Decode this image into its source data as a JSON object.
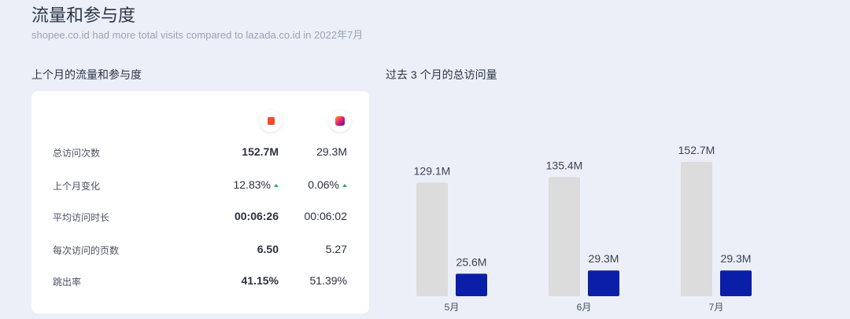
{
  "header": {
    "title": "流量和参与度",
    "subtitle": "shopee.co.id had more total visits compared to lazada.co.id in 2022年7月"
  },
  "left_section": {
    "title": "上个月的流量和参与度",
    "logos": [
      "shopee-logo-icon",
      "lazada-logo-icon"
    ],
    "rows": [
      {
        "label": "总访问次数",
        "shopee": "152.7M",
        "lazada": "29.3M",
        "shopee_bold": true,
        "arrows": false
      },
      {
        "label": "上个月变化",
        "shopee": "12.83%",
        "lazada": "0.06%",
        "shopee_bold": false,
        "arrows": true
      },
      {
        "label": "平均访问时长",
        "shopee": "00:06:26",
        "lazada": "00:06:02",
        "shopee_bold": true,
        "arrows": false
      },
      {
        "label": "每次访问的页数",
        "shopee": "6.50",
        "lazada": "5.27",
        "shopee_bold": true,
        "arrows": false
      },
      {
        "label": "跳出率",
        "shopee": "41.15%",
        "lazada": "51.39%",
        "shopee_bold": true,
        "arrows": false
      }
    ]
  },
  "right_section": {
    "title": "过去 3 个月的总访问量"
  },
  "chart_data": {
    "type": "bar",
    "title": "过去 3 个月的总访问量",
    "categories": [
      "5月",
      "6月",
      "7月"
    ],
    "series": [
      {
        "values": [
          129.1,
          135.4,
          152.7
        ],
        "labels": [
          "129.1M",
          "135.4M",
          "152.7M"
        ],
        "color": "#dcdcdc"
      },
      {
        "values": [
          25.6,
          29.3,
          29.3
        ],
        "labels": [
          "25.6M",
          "29.3M",
          "29.3M"
        ],
        "color": "#0b1ea8"
      }
    ],
    "unit": "M",
    "ylim": [
      0,
      152.7
    ],
    "grid": false
  }
}
